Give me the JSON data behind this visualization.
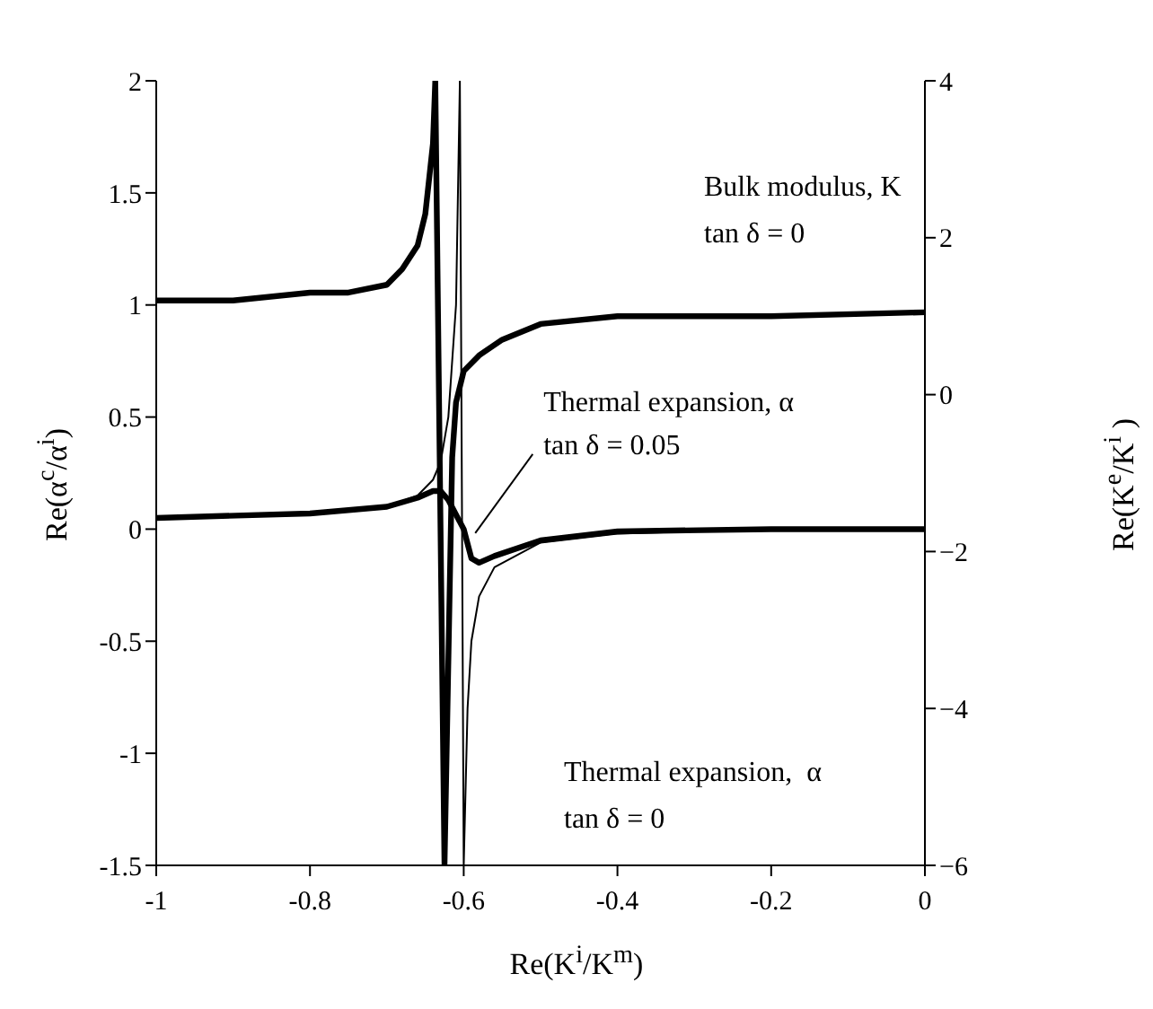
{
  "chart_data": {
    "type": "line",
    "xlabel": "Re(K$^{i}$/K$^{m}$)",
    "ylabel": "Re(α$^{c}$/α$^{i}$)",
    "y2label": "Re(K$^{e}$/K$^{i}$ )",
    "xlim": [
      -1,
      0
    ],
    "xticks": [
      -1,
      -0.8,
      -0.6,
      -0.4,
      -0.2,
      0
    ],
    "ylim": [
      -1.5,
      2
    ],
    "yticks": [
      -1.5,
      -1,
      -0.5,
      0,
      0.5,
      1,
      1.5,
      2
    ],
    "y2lim": [
      -6,
      4
    ],
    "y2ticks": [
      {
        "value": -6,
        "label": "−6"
      },
      {
        "value": -4,
        "label": "−4"
      },
      {
        "value": -2,
        "label": "−2"
      },
      0,
      2,
      4
    ],
    "marker": "none",
    "line_style": "solid",
    "series": [
      {
        "color": "#000000",
        "axis": "y2",
        "x": [
          -1,
          -0.9,
          -0.8,
          -0.75,
          -0.7,
          -0.68,
          -0.66,
          -0.65,
          -0.64,
          -0.637,
          -0.625,
          -0.615,
          -0.61,
          -0.6,
          -0.58,
          -0.55,
          -0.5,
          -0.4,
          -0.3,
          -0.2,
          0
        ],
        "values": [
          1.2,
          1.2,
          1.3,
          1.3,
          1.4,
          1.6,
          1.9,
          2.3,
          3.2,
          4,
          -6,
          -0.8,
          -0.1,
          0.3,
          0.5,
          0.7,
          0.9,
          1.0,
          1.0,
          1.0,
          1.05
        ]
      },
      {
        "color": "#000000",
        "x": [
          -1,
          -0.8,
          -0.7,
          -0.66,
          -0.64,
          -0.63,
          -0.62,
          -0.6,
          -0.59,
          -0.58,
          -0.56,
          -0.5,
          -0.4,
          -0.2,
          0
        ],
        "values": [
          0.05,
          0.07,
          0.1,
          0.14,
          0.17,
          0.17,
          0.13,
          0.0,
          -0.13,
          -0.15,
          -0.12,
          -0.05,
          -0.01,
          0.0,
          0.0
        ]
      },
      {
        "color": "#000000",
        "x": [
          -1,
          -0.8,
          -0.7,
          -0.66,
          -0.64,
          -0.63,
          -0.62,
          -0.61,
          -0.605,
          -0.6,
          -0.595,
          -0.59,
          -0.58,
          -0.56,
          -0.5,
          -0.4,
          -0.2,
          0
        ],
        "values": [
          0.05,
          0.07,
          0.1,
          0.15,
          0.22,
          0.3,
          0.5,
          1.0,
          2.0,
          -1.5,
          -0.8,
          -0.5,
          -0.3,
          -0.17,
          -0.06,
          -0.02,
          0.0,
          0.0
        ]
      }
    ],
    "annotations": [
      "Bulk modulus, K\ntan δ = 0",
      {
        "text": "Thermal expansion,  α\ntan δ = 0.05",
        "x": -0.585,
        "y": -0.05
      },
      "Thermal expansion,  α\ntan δ = 0"
    ]
  }
}
